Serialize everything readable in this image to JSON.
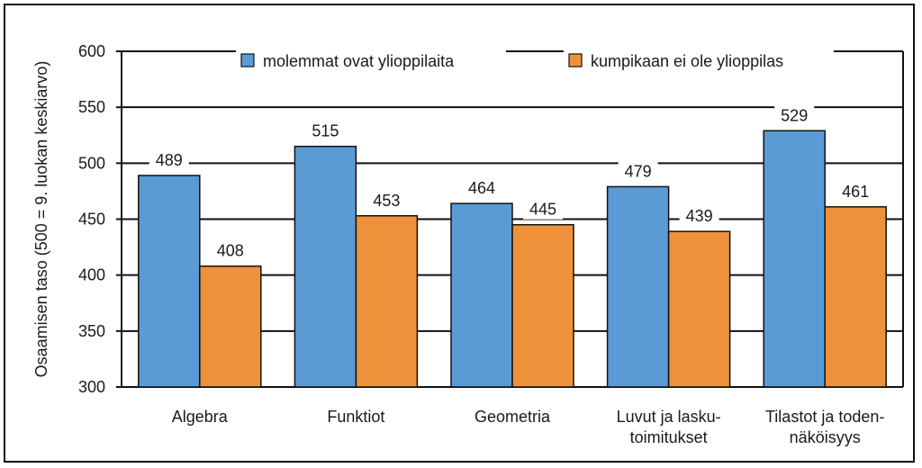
{
  "chart_data": {
    "type": "bar",
    "title": "",
    "xlabel": "",
    "ylabel": "Osaamisen taso (500 = 9. luokan keskiarvo)",
    "ylim": [
      300,
      600
    ],
    "yticks": [
      300,
      350,
      400,
      450,
      500,
      550,
      600
    ],
    "grid": true,
    "legend_position": "top",
    "categories": [
      [
        "Algebra"
      ],
      [
        "Funktiot"
      ],
      [
        "Geometria"
      ],
      [
        "Luvut ja lasku-",
        "toimitukset"
      ],
      [
        "Tilastot ja toden-",
        "näköisyys"
      ]
    ],
    "series": [
      {
        "name": "molemmat ovat ylioppilaita",
        "color": "#5b9bd5",
        "values": [
          489,
          515,
          464,
          479,
          529
        ]
      },
      {
        "name": "kumpikaan ei ole ylioppilas",
        "color": "#ed923a",
        "values": [
          408,
          453,
          445,
          439,
          461
        ]
      }
    ]
  }
}
